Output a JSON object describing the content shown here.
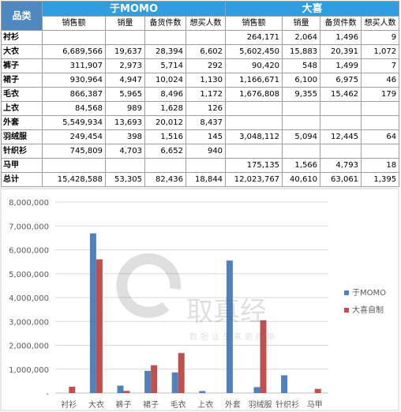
{
  "table": {
    "corner_label": "品类",
    "brands": [
      "于MOMO",
      "大喜"
    ],
    "metric_headers": [
      "销售额",
      "销量",
      "备货件数",
      "想买人数"
    ],
    "rows": [
      {
        "cat": "衬衫",
        "a": [
          "",
          "",
          "",
          ""
        ],
        "b": [
          "264,171",
          "2,064",
          "1,496",
          "9"
        ]
      },
      {
        "cat": "大衣",
        "a": [
          "6,689,566",
          "19,637",
          "28,394",
          "6,602"
        ],
        "b": [
          "5,602,450",
          "15,883",
          "20,391",
          "1,072"
        ]
      },
      {
        "cat": "裤子",
        "a": [
          "311,907",
          "2,973",
          "5,714",
          "292"
        ],
        "b": [
          "90,420",
          "548",
          "1,499",
          "7"
        ]
      },
      {
        "cat": "裙子",
        "a": [
          "930,964",
          "4,947",
          "10,024",
          "1,130"
        ],
        "b": [
          "1,166,671",
          "6,100",
          "6,975",
          "46"
        ]
      },
      {
        "cat": "毛衣",
        "a": [
          "866,387",
          "5,965",
          "8,496",
          "1,172"
        ],
        "b": [
          "1,676,808",
          "9,355",
          "15,462",
          "179"
        ]
      },
      {
        "cat": "上衣",
        "a": [
          "84,568",
          "989",
          "1,628",
          "126"
        ],
        "b": [
          "",
          "",
          "",
          ""
        ]
      },
      {
        "cat": "外套",
        "a": [
          "5,549,934",
          "13,693",
          "20,012",
          "8,437"
        ],
        "b": [
          "",
          "",
          "",
          ""
        ]
      },
      {
        "cat": "羽绒服",
        "a": [
          "249,454",
          "398",
          "1,516",
          "145"
        ],
        "b": [
          "3,048,112",
          "5,094",
          "12,445",
          "64"
        ]
      },
      {
        "cat": "针织衫",
        "a": [
          "745,809",
          "4,703",
          "6,652",
          "940"
        ],
        "b": [
          "",
          "",
          "",
          ""
        ]
      },
      {
        "cat": "马甲",
        "a": [
          "",
          "",
          "",
          ""
        ],
        "b": [
          "175,135",
          "1,566",
          "4,793",
          "18"
        ]
      },
      {
        "cat": "总计",
        "a": [
          "15,428,588",
          "53,305",
          "82,436",
          "18,844"
        ],
        "b": [
          "12,023,767",
          "40,610",
          "63,061",
          "1,395"
        ]
      }
    ]
  },
  "watermark": {
    "brand": "取真经",
    "tagline": "数据让生意更简单"
  },
  "chart_data": {
    "type": "bar",
    "categories": [
      "衬衫",
      "大衣",
      "裤子",
      "裙子",
      "毛衣",
      "上衣",
      "外套",
      "羽绒服",
      "针织衫",
      "马甲"
    ],
    "series": [
      {
        "name": "于MOMO",
        "color": "#4f81bd",
        "values": [
          0,
          6689566,
          311907,
          930964,
          866387,
          84568,
          5549934,
          249454,
          745809,
          0
        ]
      },
      {
        "name": "大喜自制",
        "color": "#c0504d",
        "values": [
          264171,
          5602450,
          90420,
          1166671,
          1676808,
          0,
          0,
          3048112,
          0,
          175135
        ]
      }
    ],
    "ylim": [
      0,
      8000000
    ],
    "yticks": [
      "-",
      "1,000,000",
      "2,000,000",
      "3,000,000",
      "4,000,000",
      "5,000,000",
      "6,000,000",
      "7,000,000",
      "8,000,000"
    ],
    "grid": true,
    "legend": "right"
  }
}
